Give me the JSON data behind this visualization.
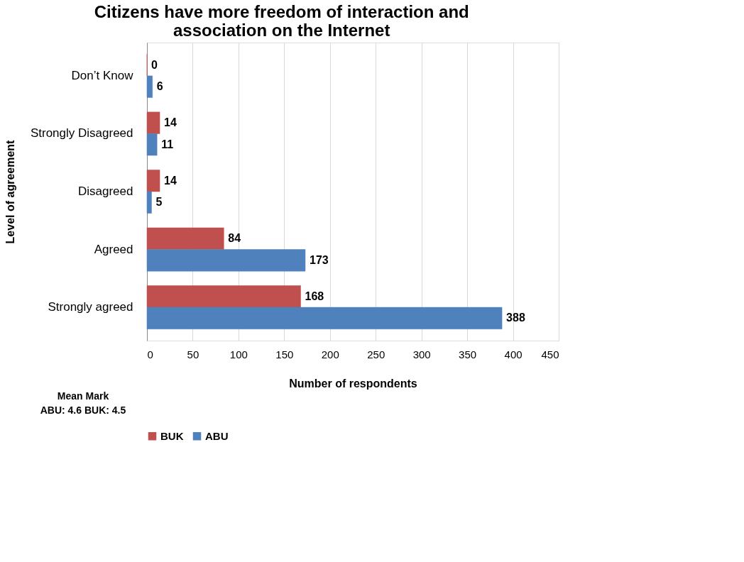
{
  "chart_data": {
    "type": "bar",
    "orientation": "horizontal",
    "title": "Citizens have more freedom of interaction and association on the Internet",
    "xlabel": "Number of respondents",
    "ylabel": "Level of agreement",
    "categories": [
      "Don’t Know",
      "Strongly Disagreed",
      "Disagreed",
      "Agreed",
      "Strongly agreed"
    ],
    "series": [
      {
        "name": "BUK",
        "color": "#c0504d",
        "values": [
          0,
          14,
          14,
          84,
          168
        ]
      },
      {
        "name": "ABU",
        "color": "#4f81bd",
        "values": [
          6,
          11,
          5,
          173,
          388
        ]
      }
    ],
    "xlim": [
      0,
      450
    ],
    "xticks": [
      0,
      50,
      100,
      150,
      200,
      250,
      300,
      350,
      400,
      450
    ],
    "grid": "x",
    "legend": "bottom",
    "data_labels": true,
    "annotations": [
      "Mean Mark",
      "ABU: 4.6 BUK: 4.5"
    ]
  }
}
